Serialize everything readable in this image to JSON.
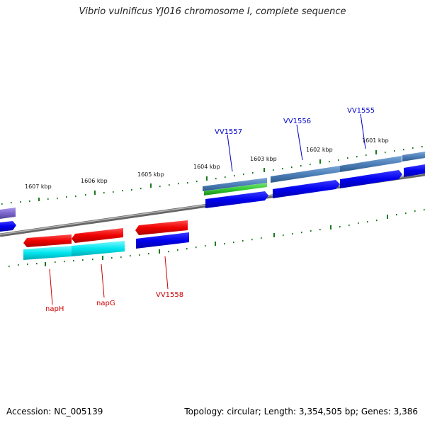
{
  "title": "Vibrio vulnificus YJ016 chromosome I, complete sequence",
  "footer": {
    "accession": "Accession: NC_005139",
    "stats": "Topology: circular; Length: 3,354,505 bp; Genes: 3,386"
  },
  "scale": {
    "unit": "kbp",
    "ticks": [
      "1607 kbp",
      "1606 kbp",
      "1605 kbp",
      "1604 kbp",
      "1603 kbp",
      "1602 kbp",
      "1601 kbp"
    ]
  },
  "gene_labels": {
    "forward": [
      "VV1557",
      "VV1556",
      "VV1555"
    ],
    "reverse": [
      "napH",
      "napG",
      "VV1558"
    ]
  },
  "colors": {
    "forward_label": "#0000cc",
    "reverse_label": "#cc0000",
    "backbone": "#888888",
    "tick": "#1a7a1a",
    "gene_blue": "#0000ee",
    "gene_red": "#ee0000",
    "gene_steelblue": "#4d7fb8",
    "gene_cyan": "#00e5ee",
    "gene_green": "#33cc33",
    "gene_violet": "#7b68cc"
  }
}
